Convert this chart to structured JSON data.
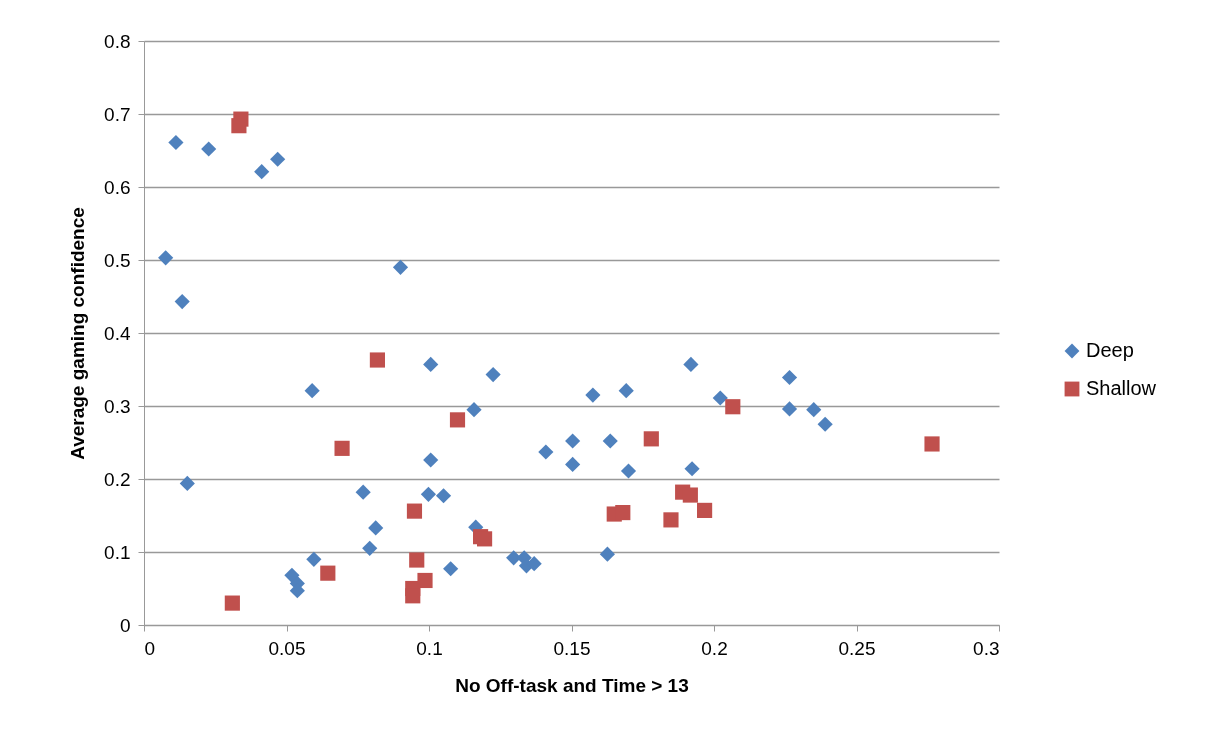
{
  "chart_data": {
    "type": "scatter",
    "xlabel": "No Off-task and Time > 13",
    "ylabel": "Average gaming confidence",
    "xlim": [
      0,
      0.3
    ],
    "xticks": [
      0,
      0.05,
      0.1,
      0.15,
      0.2,
      0.25,
      0.3
    ],
    "ylim": [
      0,
      0.8
    ],
    "yticks": [
      0,
      0.1,
      0.2,
      0.3,
      0.4,
      0.5,
      0.6,
      0.7,
      0.8
    ],
    "grid": "y",
    "legend": "right",
    "series": [
      {
        "name": "Deep",
        "color": "#4f81bd",
        "marker": "diamond",
        "x": [
          0.0112,
          0.0227,
          0.0413,
          0.0469,
          0.0076,
          0.09,
          0.0134,
          0.1006,
          0.1225,
          0.059,
          0.1158,
          0.1006,
          0.141,
          0.0152,
          0.0769,
          0.0998,
          0.1051,
          0.0813,
          0.1164,
          0.0792,
          0.0596,
          0.1076,
          0.1297,
          0.1334,
          0.1342,
          0.1369,
          0.0519,
          0.0538,
          0.0538,
          0.1919,
          0.1575,
          0.1692,
          0.2022,
          0.2265,
          0.2265,
          0.235,
          0.239,
          0.1504,
          0.1636,
          0.1504,
          0.17,
          0.1923,
          0.1626
        ],
        "values": [
          0.661,
          0.652,
          0.621,
          0.638,
          0.503,
          0.49,
          0.443,
          0.357,
          0.343,
          0.321,
          0.295,
          0.226,
          0.237,
          0.194,
          0.182,
          0.179,
          0.177,
          0.133,
          0.134,
          0.105,
          0.09,
          0.077,
          0.092,
          0.092,
          0.081,
          0.084,
          0.068,
          0.057,
          0.047,
          0.357,
          0.315,
          0.321,
          0.311,
          0.339,
          0.296,
          0.295,
          0.275,
          0.252,
          0.252,
          0.22,
          0.211,
          0.214,
          0.097
        ]
      },
      {
        "name": "Shallow",
        "color": "#c0504d",
        "marker": "square",
        "x": [
          0.034,
          0.0333,
          0.0819,
          0.11,
          0.0695,
          0.0949,
          0.1181,
          0.1195,
          0.0957,
          0.0986,
          0.0943,
          0.0943,
          0.0645,
          0.031,
          0.2066,
          0.178,
          0.2765,
          0.189,
          0.1917,
          0.1967,
          0.165,
          0.168,
          0.1849
        ],
        "values": [
          0.693,
          0.684,
          0.363,
          0.281,
          0.242,
          0.156,
          0.121,
          0.118,
          0.089,
          0.061,
          0.05,
          0.04,
          0.071,
          0.03,
          0.299,
          0.255,
          0.248,
          0.182,
          0.178,
          0.157,
          0.152,
          0.154,
          0.144
        ]
      }
    ]
  }
}
